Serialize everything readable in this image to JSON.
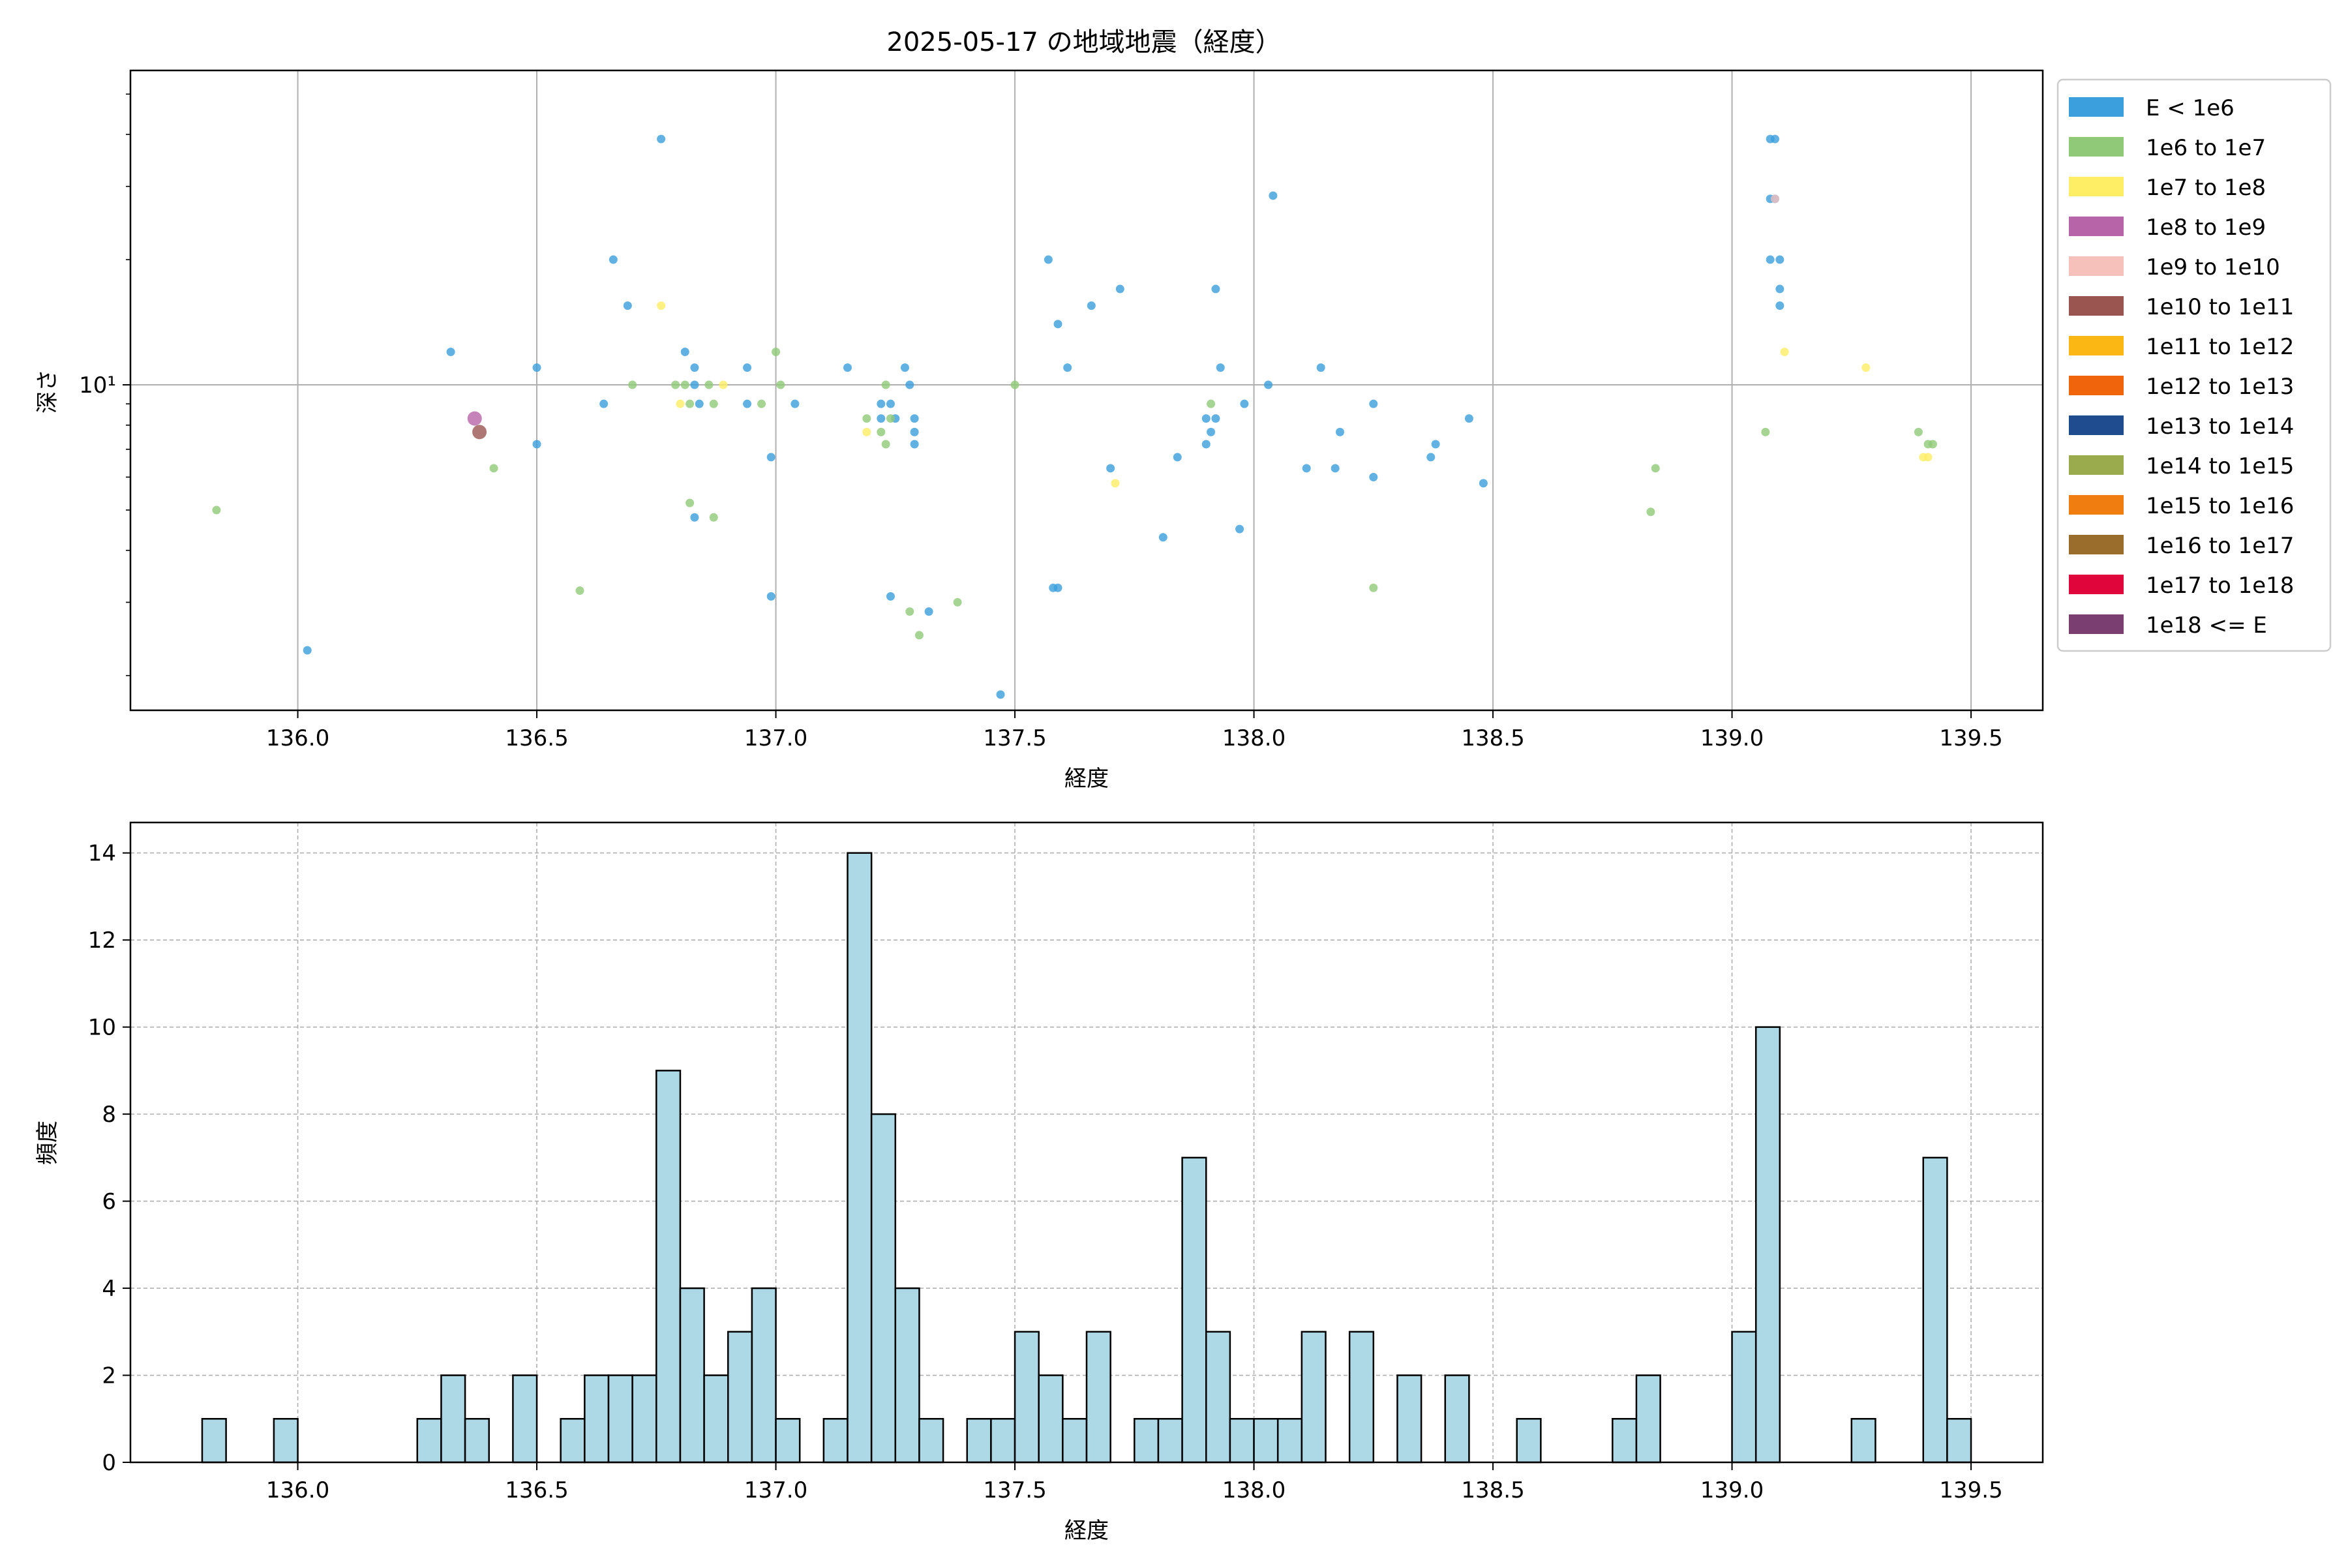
{
  "title": "2025-05-17 の地域地震（経度）",
  "chart_data": [
    {
      "type": "scatter",
      "xlabel": "経度",
      "ylabel": "深さ",
      "xlim": [
        135.65,
        139.65
      ],
      "ylim": [
        1.65,
        57
      ],
      "y_scale": "log",
      "xticks": [
        136.0,
        136.5,
        137.0,
        137.5,
        138.0,
        138.5,
        139.0,
        139.5
      ],
      "xtick_labels": [
        "136.0",
        "136.5",
        "137.0",
        "137.5",
        "138.0",
        "138.5",
        "139.0",
        "139.5"
      ],
      "ytick_labels": [
        "10¹"
      ],
      "grid": true,
      "legend_position": "outside-right",
      "legend": [
        {
          "label": "E < 1e6",
          "color": "#3a9fdc"
        },
        {
          "label": "1e6 to 1e7",
          "color": "#90c978"
        },
        {
          "label": "1e7 to 1e8",
          "color": "#fdee65"
        },
        {
          "label": "1e8 to 1e9",
          "color": "#b864a8"
        },
        {
          "label": "1e9 to 1e10",
          "color": "#f6c1bb"
        },
        {
          "label": "1e10 to 1e11",
          "color": "#9a5550"
        },
        {
          "label": "1e11 to 1e12",
          "color": "#fbb714"
        },
        {
          "label": "1e12 to 1e13",
          "color": "#f0650b"
        },
        {
          "label": "1e13 to 1e14",
          "color": "#1f4b8f"
        },
        {
          "label": "1e14 to 1e15",
          "color": "#9aab4e"
        },
        {
          "label": "1e15 to 1e16",
          "color": "#ef7d0f"
        },
        {
          "label": "1e16 to 1e17",
          "color": "#9a6d2d"
        },
        {
          "label": "1e17 to 1e18",
          "color": "#e0063b"
        },
        {
          "label": "1e18 <= E",
          "color": "#7a3e70"
        }
      ],
      "series": [
        {
          "legend_index": 0,
          "points": [
            [
              136.02,
              2.3
            ],
            [
              136.32,
              12.0
            ],
            [
              136.5,
              11.0
            ],
            [
              136.5,
              7.2
            ],
            [
              136.64,
              9.0
            ],
            [
              136.66,
              20.0
            ],
            [
              136.69,
              15.5
            ],
            [
              136.76,
              39.0
            ],
            [
              136.81,
              12.0
            ],
            [
              136.83,
              11.0
            ],
            [
              136.83,
              10.0
            ],
            [
              136.84,
              9.0
            ],
            [
              136.83,
              4.8
            ],
            [
              136.94,
              11.0
            ],
            [
              136.94,
              9.0
            ],
            [
              136.99,
              6.7
            ],
            [
              136.99,
              3.1
            ],
            [
              137.04,
              9.0
            ],
            [
              137.15,
              11.0
            ],
            [
              137.22,
              9.0
            ],
            [
              137.22,
              8.3
            ],
            [
              137.24,
              9.0
            ],
            [
              137.25,
              8.3
            ],
            [
              137.27,
              11.0
            ],
            [
              137.28,
              10.0
            ],
            [
              137.29,
              8.3
            ],
            [
              137.29,
              7.7
            ],
            [
              137.29,
              7.2
            ],
            [
              137.24,
              3.1
            ],
            [
              137.32,
              2.85
            ],
            [
              137.47,
              1.8
            ],
            [
              137.57,
              20.0
            ],
            [
              137.59,
              14.0
            ],
            [
              137.58,
              3.25
            ],
            [
              137.59,
              3.25
            ],
            [
              137.61,
              11.0
            ],
            [
              137.66,
              15.5
            ],
            [
              137.7,
              6.3
            ],
            [
              137.72,
              17.0
            ],
            [
              137.81,
              4.3
            ],
            [
              137.84,
              6.7
            ],
            [
              137.9,
              8.3
            ],
            [
              137.92,
              8.3
            ],
            [
              137.91,
              7.7
            ],
            [
              137.9,
              7.2
            ],
            [
              137.92,
              17.0
            ],
            [
              137.93,
              11.0
            ],
            [
              137.97,
              4.5
            ],
            [
              137.98,
              9.0
            ],
            [
              138.03,
              10.0
            ],
            [
              138.04,
              28.5
            ],
            [
              138.11,
              6.3
            ],
            [
              138.14,
              11.0
            ],
            [
              138.17,
              6.3
            ],
            [
              138.18,
              7.7
            ],
            [
              138.25,
              9.0
            ],
            [
              138.25,
              6.0
            ],
            [
              138.37,
              6.7
            ],
            [
              138.38,
              7.2
            ],
            [
              138.45,
              8.3
            ],
            [
              138.48,
              5.8
            ],
            [
              139.08,
              39.0
            ],
            [
              139.09,
              39.0
            ],
            [
              139.08,
              28.0
            ],
            [
              139.09,
              28.0
            ],
            [
              139.08,
              20.0
            ],
            [
              139.1,
              20.0
            ],
            [
              139.1,
              17.0
            ],
            [
              139.1,
              15.5
            ]
          ]
        },
        {
          "legend_index": 1,
          "points": [
            [
              135.83,
              5.0
            ],
            [
              136.41,
              6.3
            ],
            [
              136.59,
              3.2
            ],
            [
              136.7,
              10.0
            ],
            [
              136.79,
              10.0
            ],
            [
              136.81,
              10.0
            ],
            [
              136.86,
              10.0
            ],
            [
              136.82,
              9.0
            ],
            [
              136.87,
              9.0
            ],
            [
              136.82,
              5.2
            ],
            [
              136.87,
              4.8
            ],
            [
              136.97,
              9.0
            ],
            [
              137.0,
              12.0
            ],
            [
              137.01,
              10.0
            ],
            [
              137.19,
              8.3
            ],
            [
              137.22,
              7.7
            ],
            [
              137.23,
              10.0
            ],
            [
              137.24,
              8.3
            ],
            [
              137.23,
              7.2
            ],
            [
              137.28,
              2.85
            ],
            [
              137.3,
              2.5
            ],
            [
              137.38,
              3.0
            ],
            [
              137.5,
              10.0
            ],
            [
              137.91,
              9.0
            ],
            [
              138.25,
              3.25
            ],
            [
              138.83,
              4.95
            ],
            [
              138.84,
              6.3
            ],
            [
              139.07,
              7.7
            ],
            [
              139.39,
              7.7
            ],
            [
              139.41,
              7.2
            ],
            [
              139.42,
              7.2
            ]
          ]
        },
        {
          "legend_index": 2,
          "points": [
            [
              136.76,
              15.5
            ],
            [
              136.8,
              9.0
            ],
            [
              136.89,
              10.0
            ],
            [
              137.19,
              7.7
            ],
            [
              137.71,
              5.8
            ],
            [
              139.11,
              12.0
            ],
            [
              139.28,
              11.0
            ],
            [
              139.4,
              6.7
            ],
            [
              139.41,
              6.7
            ]
          ]
        },
        {
          "legend_index": 3,
          "points": [
            [
              136.37,
              8.3
            ]
          ]
        },
        {
          "legend_index": 4,
          "points": [
            [
              139.09,
              28.0
            ]
          ]
        },
        {
          "legend_index": 5,
          "points": [
            [
              136.38,
              7.7
            ]
          ]
        }
      ]
    },
    {
      "type": "bar",
      "xlabel": "経度",
      "ylabel": "頻度",
      "xlim": [
        135.65,
        139.65
      ],
      "ylim": [
        0,
        14.7
      ],
      "xticks": [
        136.0,
        136.5,
        137.0,
        137.5,
        138.0,
        138.5,
        139.0,
        139.5
      ],
      "xtick_labels": [
        "136.0",
        "136.5",
        "137.0",
        "137.5",
        "138.0",
        "138.5",
        "139.0",
        "139.5"
      ],
      "yticks": [
        0,
        2,
        4,
        6,
        8,
        10,
        12,
        14
      ],
      "ytick_labels": [
        "0",
        "2",
        "4",
        "6",
        "8",
        "10",
        "12",
        "14"
      ],
      "grid": true,
      "bar_color": "#add8e6",
      "bin_start": 135.8,
      "bin_width": 0.05,
      "counts": [
        1,
        0,
        0,
        1,
        0,
        0,
        0,
        0,
        0,
        1,
        2,
        1,
        0,
        2,
        0,
        1,
        2,
        2,
        2,
        9,
        4,
        2,
        3,
        4,
        1,
        0,
        1,
        14,
        8,
        4,
        1,
        0,
        1,
        1,
        3,
        2,
        1,
        3,
        0,
        1,
        1,
        7,
        3,
        1,
        1,
        1,
        3,
        0,
        3,
        0,
        2,
        0,
        2,
        0,
        0,
        1,
        0,
        0,
        0,
        1,
        2,
        0,
        0,
        0,
        3,
        10,
        0,
        0,
        0,
        1,
        0,
        0,
        7,
        1
      ]
    }
  ]
}
